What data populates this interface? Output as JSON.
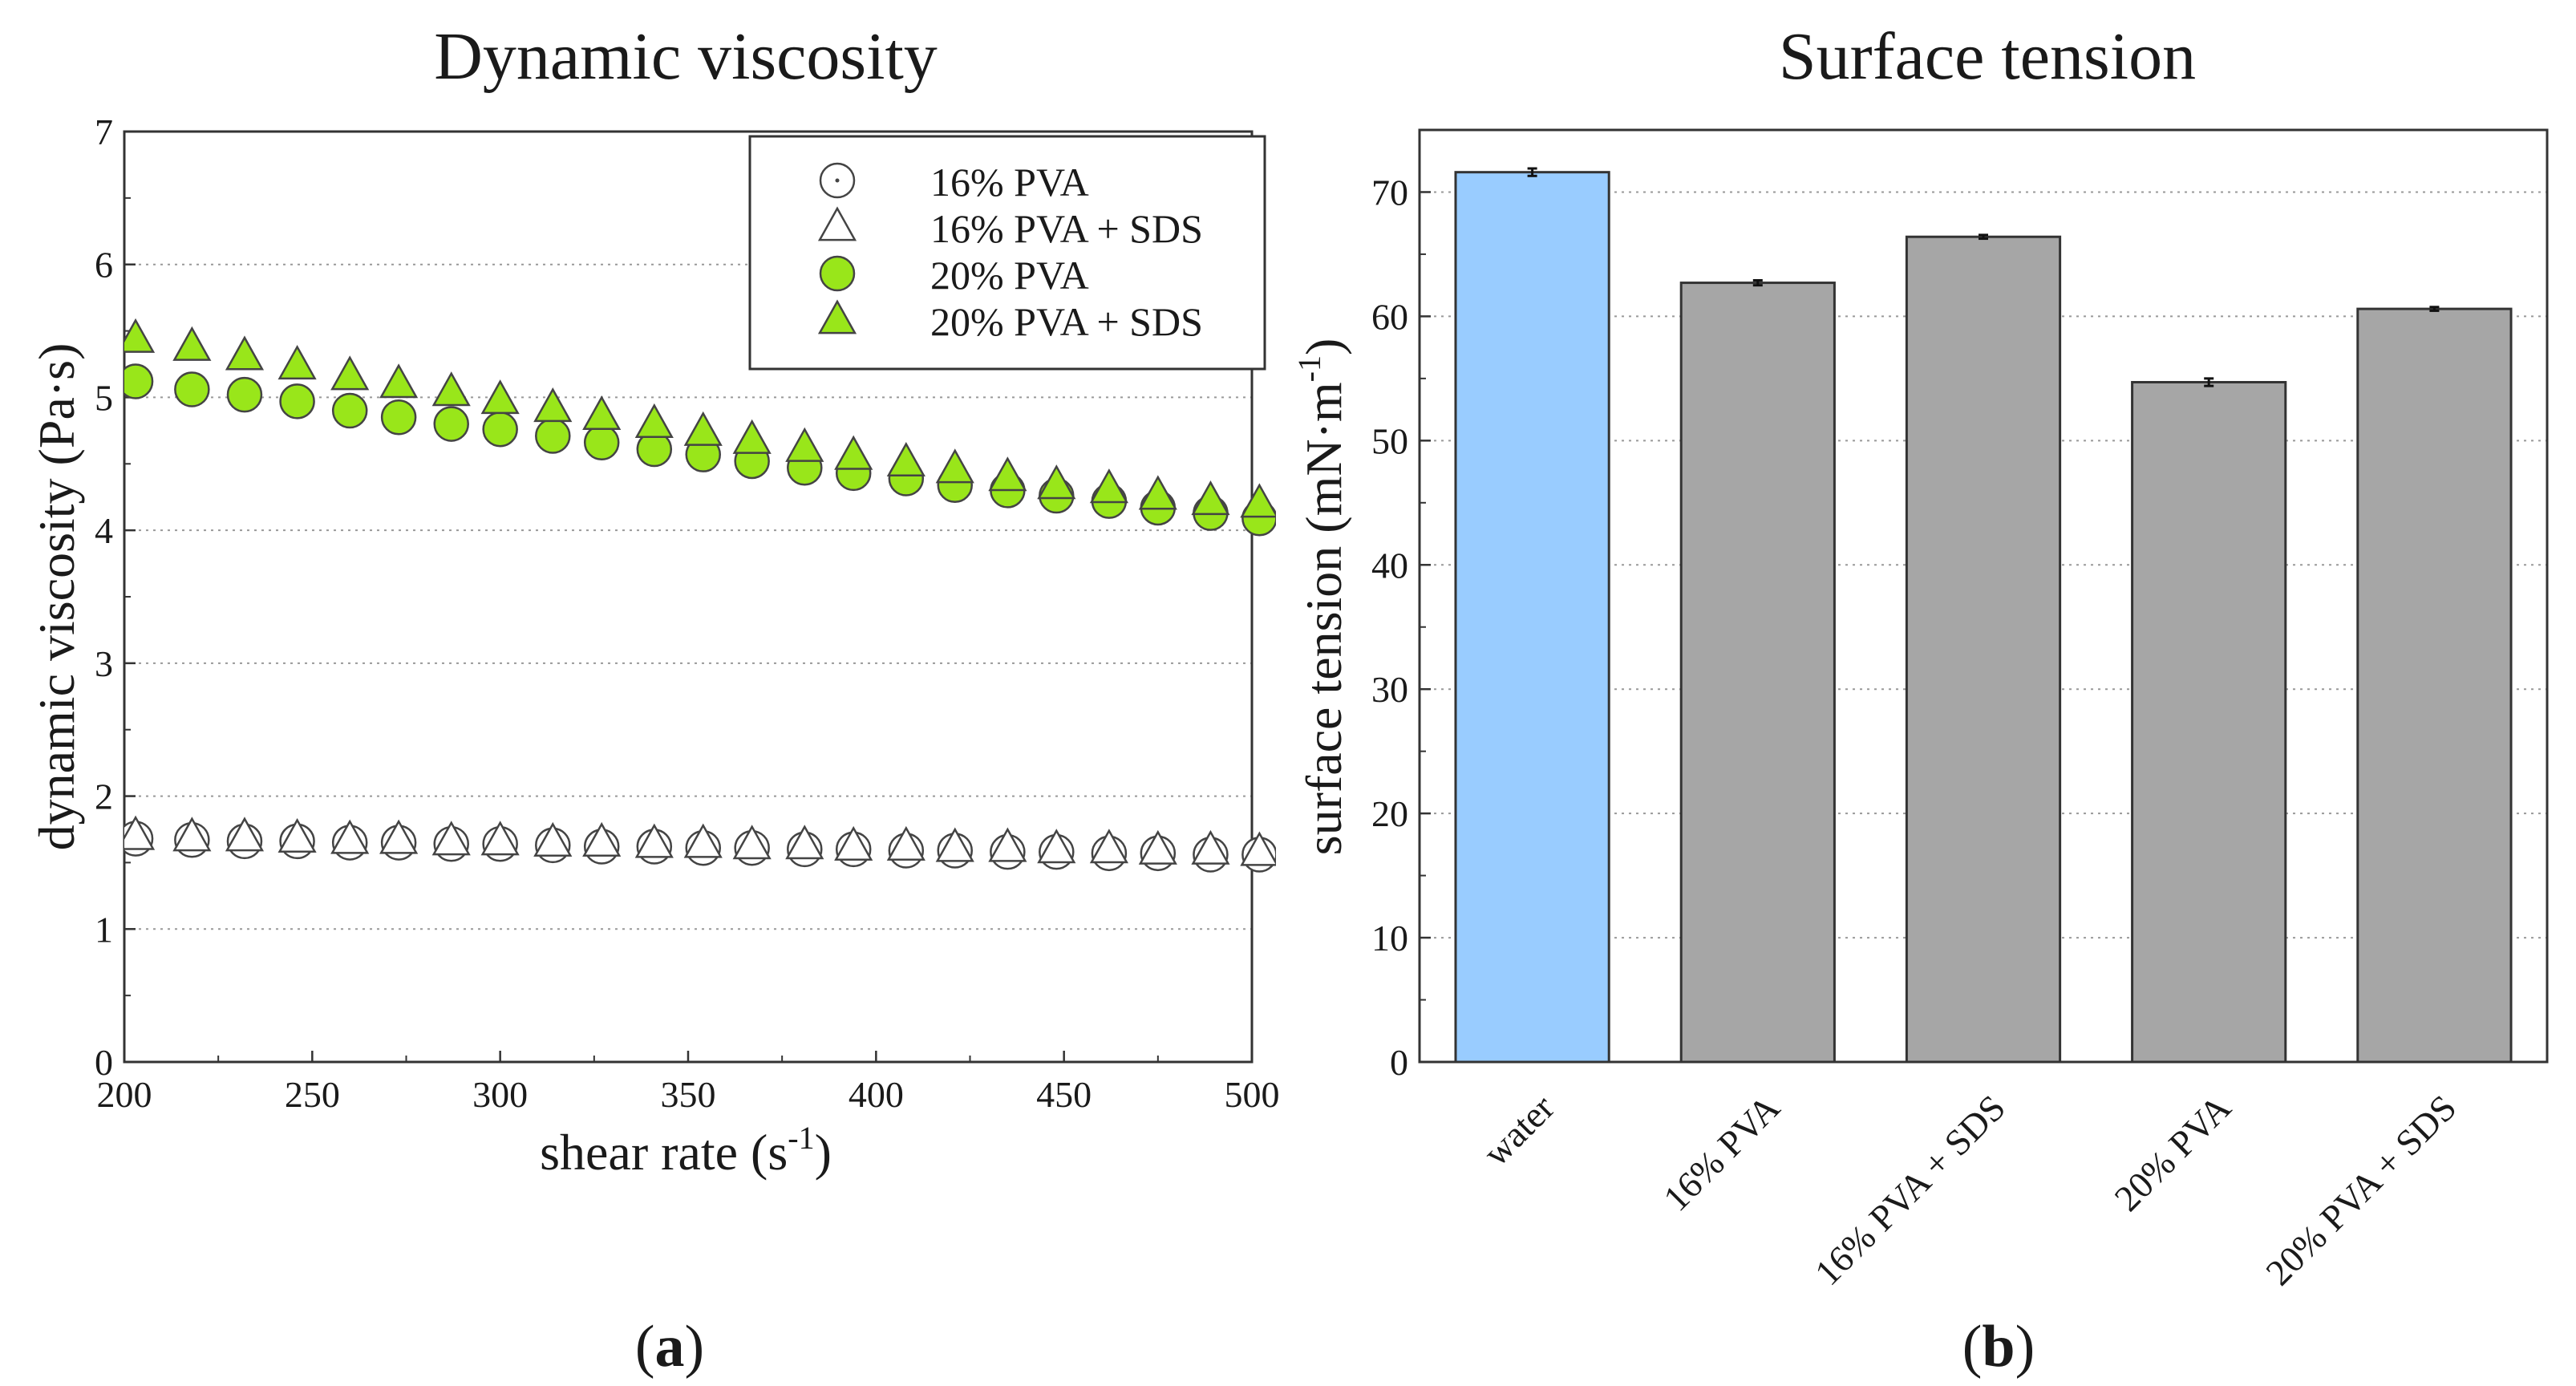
{
  "chart_data": [
    {
      "type": "scatter",
      "title": "Dynamic viscosity",
      "xlabel": "shear rate (s",
      "xlabel_sup": "-1",
      "xlabel_end": ")",
      "ylabel": "dynamic viscosity (Pa·s)",
      "xlim": [
        200,
        500
      ],
      "ylim": [
        0,
        7
      ],
      "xticks": [
        200,
        250,
        300,
        350,
        400,
        450,
        500
      ],
      "yticks": [
        0,
        1,
        2,
        3,
        4,
        5,
        6,
        7
      ],
      "grid": "horizontal dotted",
      "legend_position": "top-right",
      "panel_label": "a",
      "x": [
        203,
        218,
        232,
        246,
        260,
        273,
        287,
        300,
        314,
        327,
        341,
        354,
        367,
        381,
        394,
        408,
        421,
        435,
        448,
        462,
        475,
        489,
        502
      ],
      "series": [
        {
          "name": "16% PVA",
          "marker": "circle-dot",
          "color": "#ffffff",
          "values": [
            1.68,
            1.67,
            1.66,
            1.66,
            1.65,
            1.65,
            1.64,
            1.64,
            1.63,
            1.62,
            1.62,
            1.61,
            1.61,
            1.6,
            1.6,
            1.59,
            1.59,
            1.58,
            1.58,
            1.57,
            1.57,
            1.56,
            1.56
          ]
        },
        {
          "name": "16% PVA + SDS",
          "marker": "triangle",
          "color": "#ffffff",
          "values": [
            1.7,
            1.69,
            1.69,
            1.68,
            1.67,
            1.67,
            1.66,
            1.66,
            1.65,
            1.65,
            1.64,
            1.64,
            1.63,
            1.63,
            1.62,
            1.62,
            1.61,
            1.61,
            1.6,
            1.6,
            1.59,
            1.59,
            1.58
          ]
        },
        {
          "name": "20% PVA",
          "marker": "circle",
          "color": "#99e61a",
          "values": [
            5.12,
            5.06,
            5.02,
            4.97,
            4.9,
            4.85,
            4.8,
            4.76,
            4.71,
            4.66,
            4.61,
            4.57,
            4.52,
            4.47,
            4.43,
            4.39,
            4.34,
            4.3,
            4.26,
            4.22,
            4.17,
            4.13,
            4.09
          ]
        },
        {
          "name": "20% PVA + SDS",
          "marker": "triangle",
          "color": "#99e61a",
          "values": [
            5.44,
            5.38,
            5.31,
            5.24,
            5.16,
            5.1,
            5.04,
            4.98,
            4.92,
            4.86,
            4.8,
            4.74,
            4.68,
            4.62,
            4.56,
            4.51,
            4.46,
            4.4,
            4.34,
            4.31,
            4.26,
            4.22,
            4.2
          ]
        }
      ]
    },
    {
      "type": "bar",
      "title": "Surface tension",
      "xlabel": "",
      "ylabel": "surface tension (mN·m",
      "ylabel_sup": "-1",
      "ylabel_end": ")",
      "ylim": [
        0,
        75
      ],
      "yticks": [
        0,
        10,
        20,
        30,
        40,
        50,
        60,
        70
      ],
      "grid": "horizontal dotted",
      "panel_label": "b",
      "categories": [
        "water",
        "16% PVA",
        "16% PVA + SDS",
        "20% PVA",
        "20% PVA + SDS"
      ],
      "values": [
        71.6,
        62.7,
        66.4,
        54.7,
        60.6
      ],
      "errors": [
        0.3,
        0.2,
        0.15,
        0.3,
        0.15
      ],
      "colors": [
        "#99ccff",
        "#a6a6a6",
        "#a6a6a6",
        "#a6a6a6",
        "#a6a6a6"
      ]
    }
  ]
}
